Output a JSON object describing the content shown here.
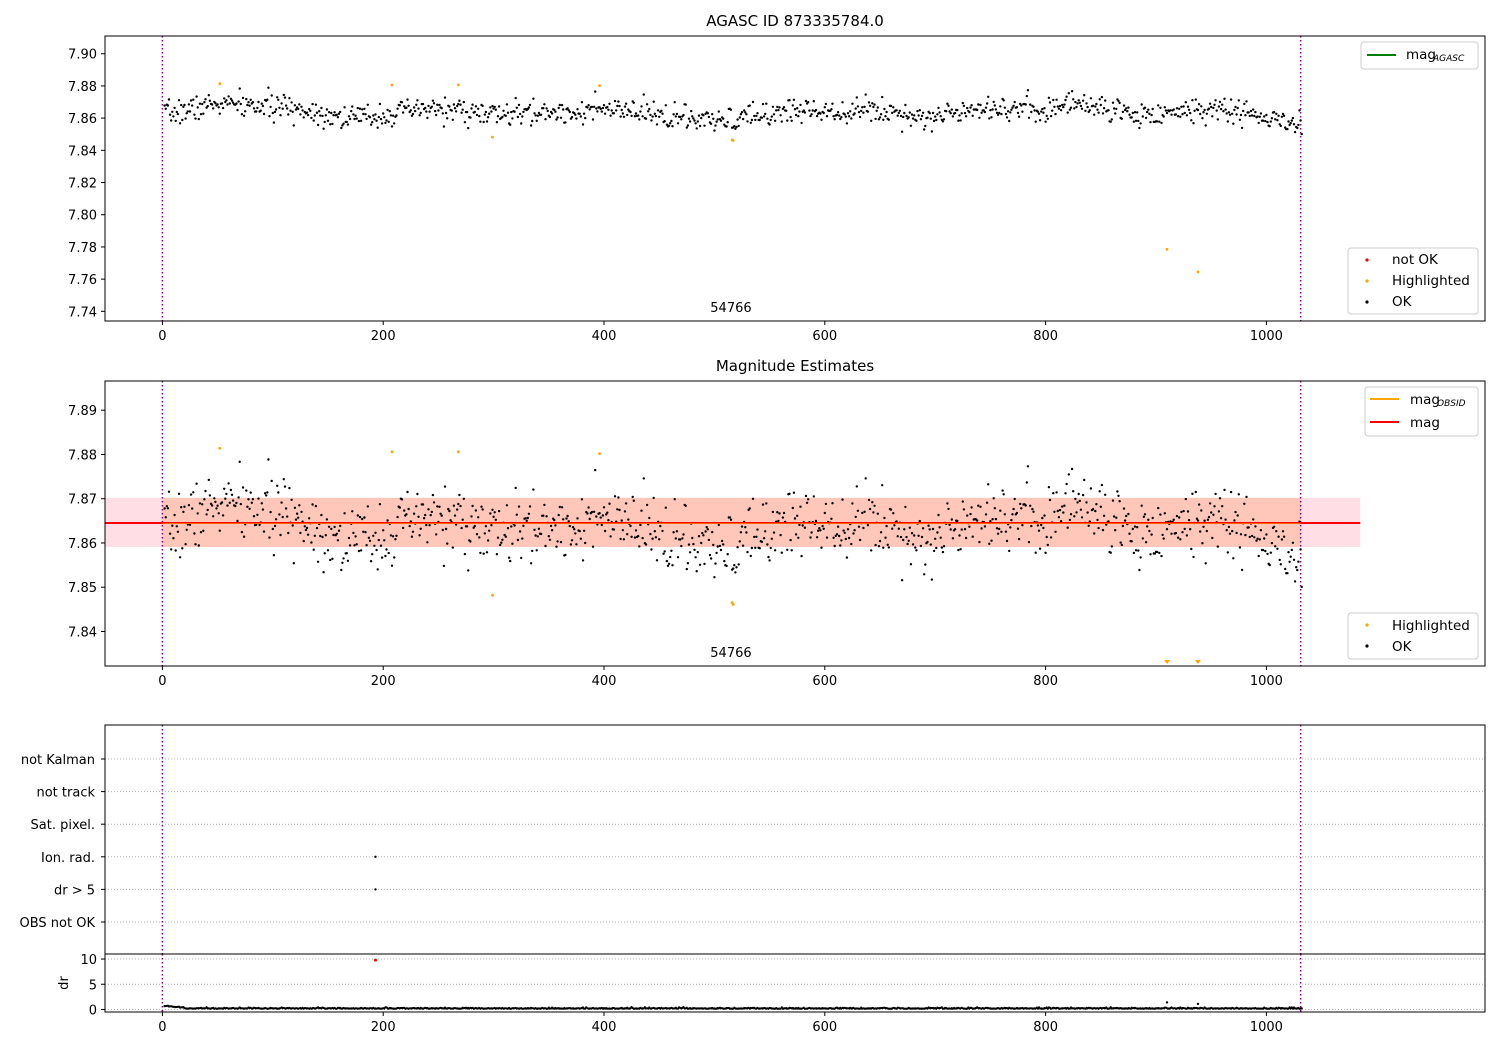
{
  "colors": {
    "ok": "#000000",
    "highlighted": "#ffa500",
    "not_ok": "#ff0000",
    "agasc_line": "#008000",
    "obsid_line": "#ffa500",
    "mean_line": "#ff0000",
    "band_outer": "#ffc0cb",
    "band_inner": "#ffa07a",
    "obs_boundary": "#800080",
    "grid": "#b0b0b0"
  },
  "chart_data": [
    {
      "type": "scatter",
      "title": "AGASC ID 873335784.0",
      "xlim": [
        -52,
        1198
      ],
      "ylim": [
        7.734,
        7.911
      ],
      "xticks": [
        0,
        200,
        400,
        600,
        800,
        1000
      ],
      "yticks": [
        7.74,
        7.76,
        7.78,
        7.8,
        7.82,
        7.84,
        7.86,
        7.88,
        7.9
      ],
      "xtick_labels": [
        "0",
        "200",
        "400",
        "600",
        "800",
        "1000"
      ],
      "ytick_labels": [
        "7.74",
        "7.76",
        "7.78",
        "7.80",
        "7.82",
        "7.84",
        "7.86",
        "7.88",
        "7.90"
      ],
      "obs_boundaries": [
        0,
        1031
      ],
      "obs_label": {
        "text": "54766",
        "x": 515
      },
      "legend_top": [
        {
          "label": "mag",
          "sub": "AGASC",
          "color": "#008000"
        }
      ],
      "legend_bottom": [
        {
          "label": "not OK",
          "color": "#ff0000"
        },
        {
          "label": "Highlighted",
          "color": "#ffa500"
        },
        {
          "label": "OK",
          "color": "#000000"
        }
      ],
      "ok_model": {
        "n": 1031,
        "x_start": 2,
        "x_step": 1.0,
        "noise": 0.0038,
        "seed": 7,
        "trend_x": [
          0,
          50,
          120,
          170,
          250,
          300,
          400,
          450,
          500,
          570,
          650,
          700,
          730,
          800,
          830,
          880,
          960,
          1031
        ],
        "trend_y": [
          7.862,
          7.869,
          7.866,
          7.86,
          7.866,
          7.862,
          7.865,
          7.862,
          7.857,
          7.865,
          7.865,
          7.86,
          7.867,
          7.865,
          7.87,
          7.862,
          7.866,
          7.855
        ]
      },
      "highlighted": [
        [
          52,
          7.8814
        ],
        [
          208,
          7.8806
        ],
        [
          268,
          7.8806
        ],
        [
          299,
          7.8482
        ],
        [
          396,
          7.8802
        ],
        [
          516,
          7.8465
        ],
        [
          517,
          7.8461
        ],
        [
          910,
          7.7785
        ],
        [
          938,
          7.7645
        ]
      ]
    },
    {
      "type": "scatter",
      "title": "Magnitude Estimates",
      "xlim": [
        -52,
        1198
      ],
      "ylim": [
        7.8322,
        7.8966
      ],
      "xticks": [
        0,
        200,
        400,
        600,
        800,
        1000
      ],
      "yticks": [
        7.84,
        7.85,
        7.86,
        7.87,
        7.88,
        7.89
      ],
      "xtick_labels": [
        "0",
        "200",
        "400",
        "600",
        "800",
        "1000"
      ],
      "ytick_labels": [
        "7.84",
        "7.85",
        "7.86",
        "7.87",
        "7.88",
        "7.89"
      ],
      "obs_boundaries": [
        0,
        1031
      ],
      "obs_label": {
        "text": "54766",
        "x": 515
      },
      "mean": 7.8645,
      "band_outer": [
        7.8591,
        7.8702
      ],
      "band_inner": [
        7.8591,
        7.8702
      ],
      "band_outer_x": [
        -52,
        1085
      ],
      "band_inner_x": [
        0,
        1031
      ],
      "legend_top": [
        {
          "label": "mag",
          "sub": "OBSID",
          "color": "#ffa500"
        },
        {
          "label": "mag",
          "sub": "",
          "color": "#ff0000"
        }
      ],
      "legend_bottom": [
        {
          "label": "Highlighted",
          "color": "#ffa500"
        },
        {
          "label": "OK",
          "color": "#000000"
        }
      ],
      "highlighted": [
        [
          52,
          7.8814
        ],
        [
          208,
          7.8806
        ],
        [
          268,
          7.8806
        ],
        [
          299,
          7.8482
        ],
        [
          396,
          7.8802
        ],
        [
          516,
          7.8465
        ],
        [
          517,
          7.8461
        ]
      ],
      "offscale_markers": [
        910,
        938
      ]
    },
    {
      "type": "scatter",
      "title": "",
      "xlim": [
        -52,
        1198
      ],
      "flag_rows": [
        "not Kalman",
        "not track",
        "Sat. pixel.",
        "Ion. rad.",
        "dr > 5",
        "OBS not OK"
      ],
      "flag_points": [
        [
          193,
          "Ion. rad."
        ],
        [
          193,
          "dr > 5"
        ]
      ],
      "obs_boundaries": [
        0,
        1031
      ]
    },
    {
      "type": "scatter",
      "title": "",
      "xlim": [
        -52,
        1198
      ],
      "ylim": [
        -0.5,
        11
      ],
      "ylabel": "dr",
      "yticks": [
        0,
        5,
        10
      ],
      "ytick_labels": [
        "0",
        "5",
        "10"
      ],
      "xticks": [
        0,
        200,
        400,
        600,
        800,
        1000
      ],
      "xtick_labels": [
        "0",
        "200",
        "400",
        "600",
        "800",
        "1000"
      ],
      "obs_boundaries": [
        0,
        1031
      ],
      "not_ok": [
        [
          193,
          9.8
        ]
      ],
      "outliers": [
        [
          910,
          1.4
        ],
        [
          938,
          1.1
        ]
      ]
    }
  ]
}
